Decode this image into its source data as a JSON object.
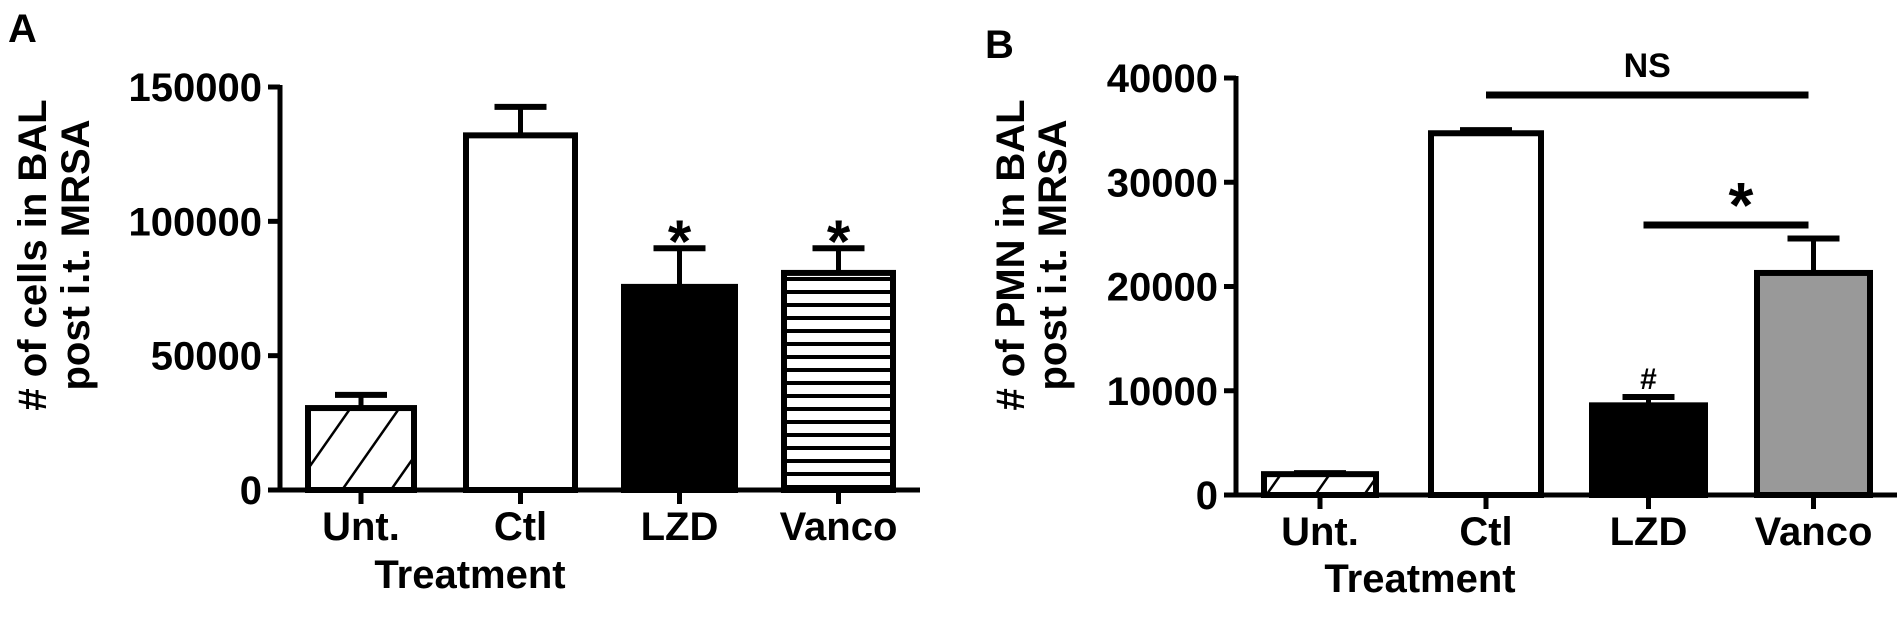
{
  "chart_data": [
    {
      "type": "bar",
      "panel_label": "A",
      "categories": [
        "Unt.",
        "Ctl",
        "LZD",
        "Vanco"
      ],
      "values": [
        30500,
        132000,
        75600,
        80800
      ],
      "error_upper": [
        35400,
        142600,
        90000,
        90000
      ],
      "fills": [
        "diagonal-hatch",
        "#ffffff",
        "#000000",
        "horizontal-stripes"
      ],
      "annotations": [
        "",
        "",
        "*",
        "*"
      ],
      "xlabel": "Treatment",
      "ylabel": [
        "# of cells in BAL",
        "post i.t. MRSA"
      ],
      "ylim": [
        0,
        150000
      ],
      "yticks": [
        0,
        50000,
        100000,
        150000
      ],
      "ytick_labels": [
        "0",
        "50000",
        "100000",
        "150000"
      ],
      "grid": false
    },
    {
      "type": "bar",
      "panel_label": "B",
      "categories": [
        "Unt.",
        "Ctl",
        "LZD",
        "Vanco"
      ],
      "values": [
        2000,
        34700,
        8600,
        21300
      ],
      "error_upper": [
        2100,
        35000,
        9400,
        24600
      ],
      "fills": [
        "diagonal-hatch",
        "#ffffff",
        "#000000",
        "#999999"
      ],
      "annotations": [
        "",
        "",
        "#",
        ""
      ],
      "brackets": [
        {
          "from": "Ctl",
          "to": "Vanco",
          "label": "NS"
        },
        {
          "from": "LZD",
          "to": "Vanco",
          "label": "*"
        }
      ],
      "xlabel": "Treatment",
      "ylabel": [
        "# of PMN in BAL",
        "post i.t. MRSA"
      ],
      "ylim": [
        0,
        40000
      ],
      "yticks": [
        0,
        10000,
        20000,
        30000,
        40000
      ],
      "ytick_labels": [
        "0",
        "10000",
        "20000",
        "30000",
        "40000"
      ],
      "grid": false
    }
  ]
}
